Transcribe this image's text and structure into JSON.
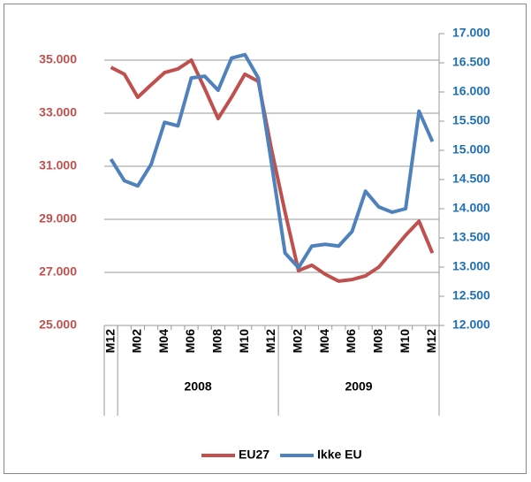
{
  "chart_data": {
    "type": "line",
    "categories": [
      "M12",
      null,
      "M02",
      null,
      "M04",
      null,
      "M06",
      null,
      "M08",
      null,
      "M10",
      null,
      "M12",
      null,
      "M02",
      null,
      "M04",
      null,
      "M06",
      null,
      "M08",
      null,
      "M10",
      null,
      "M12"
    ],
    "x_groups": [
      {
        "label": null,
        "count": 1
      },
      {
        "label": "2008",
        "count": 12
      },
      {
        "label": "2009",
        "count": 12
      }
    ],
    "series": [
      {
        "name": "EU27",
        "color": "#c0504d",
        "values": [
          34730,
          34470,
          33600,
          34070,
          34530,
          34670,
          35000,
          33930,
          32800,
          33600,
          34470,
          34200,
          31600,
          29270,
          27070,
          27270,
          26930,
          26670,
          26730,
          26870,
          27200,
          27800,
          28400,
          28930,
          27730
        ]
      },
      {
        "name": "Ikke EU",
        "color": "#4f81bd",
        "axis": "y2",
        "values": [
          14850,
          14480,
          14390,
          14760,
          15480,
          15420,
          16240,
          16270,
          16030,
          16580,
          16640,
          16240,
          14760,
          13240,
          12990,
          13360,
          13390,
          13360,
          13610,
          14300,
          14030,
          13940,
          14000,
          15670,
          15150
        ]
      }
    ],
    "ylim": [
      25000,
      36000
    ],
    "yticks": [
      {
        "value": 25000,
        "label": "25.000"
      },
      {
        "value": 27000,
        "label": "27.000"
      },
      {
        "value": 29000,
        "label": "29.000"
      },
      {
        "value": 31000,
        "label": "31.000"
      },
      {
        "value": 33000,
        "label": "33.000"
      },
      {
        "value": 35000,
        "label": "35.000"
      }
    ],
    "y2lim": [
      12000,
      17000
    ],
    "y2ticks": [
      {
        "value": 12000,
        "label": "12.000"
      },
      {
        "value": 12500,
        "label": "12.500"
      },
      {
        "value": 13000,
        "label": "13.000"
      },
      {
        "value": 13500,
        "label": "13.500"
      },
      {
        "value": 14000,
        "label": "14.000"
      },
      {
        "value": 14500,
        "label": "14.500"
      },
      {
        "value": 15000,
        "label": "15.000"
      },
      {
        "value": 15500,
        "label": "15.500"
      },
      {
        "value": 16000,
        "label": "16.000"
      },
      {
        "value": 16500,
        "label": "16.500"
      },
      {
        "value": 17000,
        "label": "17.000"
      }
    ],
    "ytick_color": "#c0504d",
    "y2tick_color": "#1f6fb5",
    "grid": true,
    "legend": "bottom"
  }
}
